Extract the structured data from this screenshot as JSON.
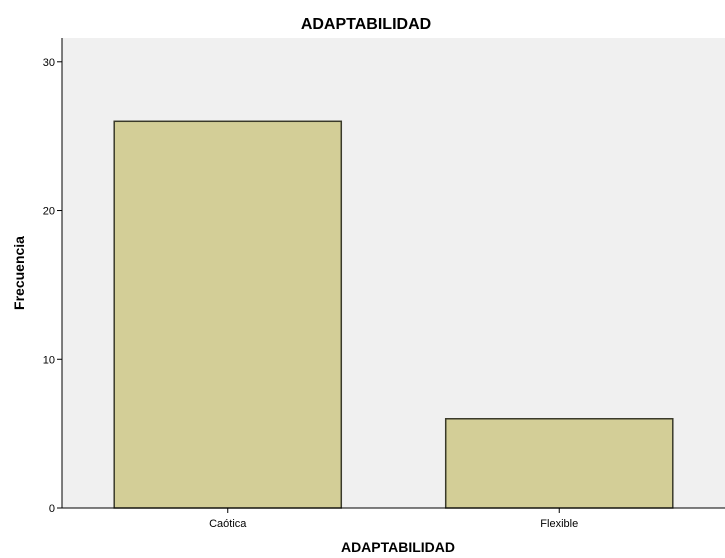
{
  "chart_data": {
    "type": "bar",
    "title": "ADAPTABILIDAD",
    "xlabel": "ADAPTABILIDAD",
    "ylabel": "Frecuencia",
    "categories": [
      "Caótica",
      "Flexible"
    ],
    "values": [
      26,
      6
    ],
    "ylim": [
      0,
      31.6
    ],
    "yticks": [
      0,
      10,
      20,
      30
    ],
    "grid": false,
    "colors": {
      "plot_background": "#f0f0f0",
      "bar_fill": "#d3ce97",
      "bar_stroke": "#3a3a2a",
      "axis": "#000000"
    }
  }
}
